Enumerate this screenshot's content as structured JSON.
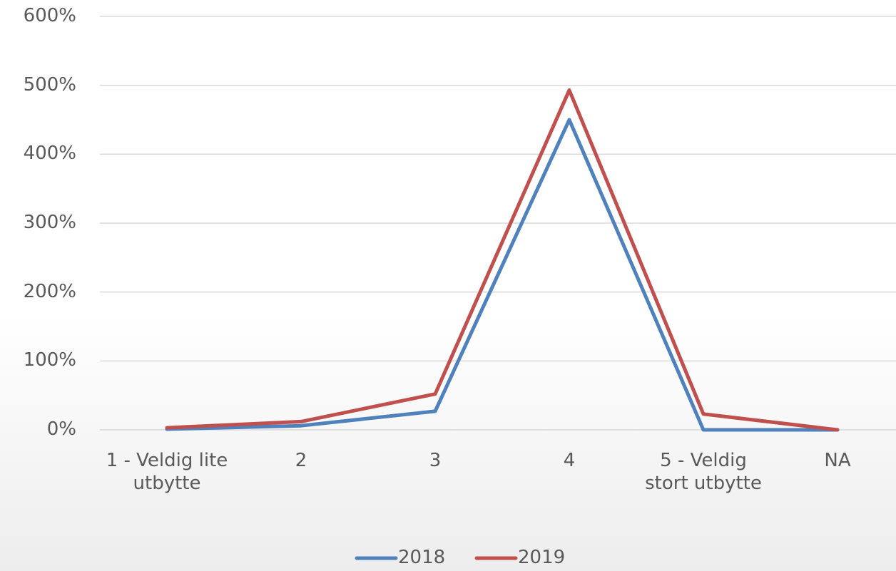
{
  "chart_data": {
    "type": "line",
    "categories": [
      "1 - Veldig lite utbytte",
      "2",
      "3",
      "4",
      "5 - Veldig stort utbytte",
      "NA"
    ],
    "series": [
      {
        "name": "2018",
        "color": "#4f81bd",
        "values": [
          1,
          6,
          27,
          450,
          0,
          0
        ]
      },
      {
        "name": "2019",
        "color": "#c0504d",
        "values": [
          3,
          12,
          52,
          493,
          23,
          0
        ]
      }
    ],
    "ylim": [
      0,
      600
    ],
    "yticks": [
      {
        "value": 0,
        "label": "0%"
      },
      {
        "value": 100,
        "label": "100%"
      },
      {
        "value": 200,
        "label": "200%"
      },
      {
        "value": 300,
        "label": "300%"
      },
      {
        "value": 400,
        "label": "400%"
      },
      {
        "value": 500,
        "label": "500%"
      },
      {
        "value": 600,
        "label": "600%"
      }
    ],
    "grid": true,
    "legend": "bottom"
  }
}
